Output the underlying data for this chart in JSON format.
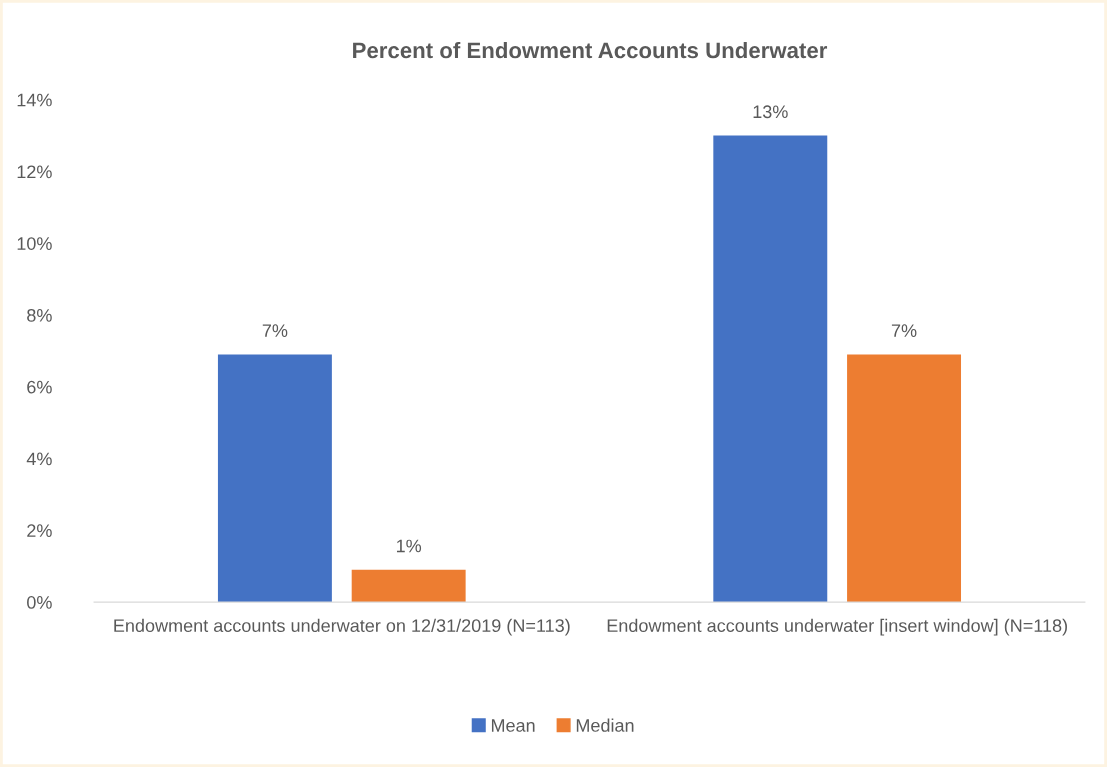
{
  "chart_data": {
    "type": "bar",
    "title": "Percent of Endowment Accounts Underwater",
    "categories": [
      "Endowment accounts underwater on 12/31/2019 (N=113)",
      "Endowment accounts underwater [insert window] (N=118)"
    ],
    "series": [
      {
        "name": "Mean",
        "color": "#4472c4",
        "values": [
          6.9,
          13
        ],
        "value_labels": [
          "7%",
          "13%"
        ]
      },
      {
        "name": "Median",
        "color": "#ed7d31",
        "values": [
          0.9,
          6.9
        ],
        "value_labels": [
          "1%",
          "7%"
        ]
      }
    ],
    "ylim": [
      0,
      14
    ],
    "yticks": [
      {
        "value": 0,
        "label": "0%"
      },
      {
        "value": 2,
        "label": "2%"
      },
      {
        "value": 4,
        "label": "4%"
      },
      {
        "value": 6,
        "label": "6%"
      },
      {
        "value": 8,
        "label": "8%"
      },
      {
        "value": 10,
        "label": "10%"
      },
      {
        "value": 12,
        "label": "12%"
      },
      {
        "value": 14,
        "label": "14%"
      }
    ],
    "grid": false,
    "legend": "bottom"
  }
}
